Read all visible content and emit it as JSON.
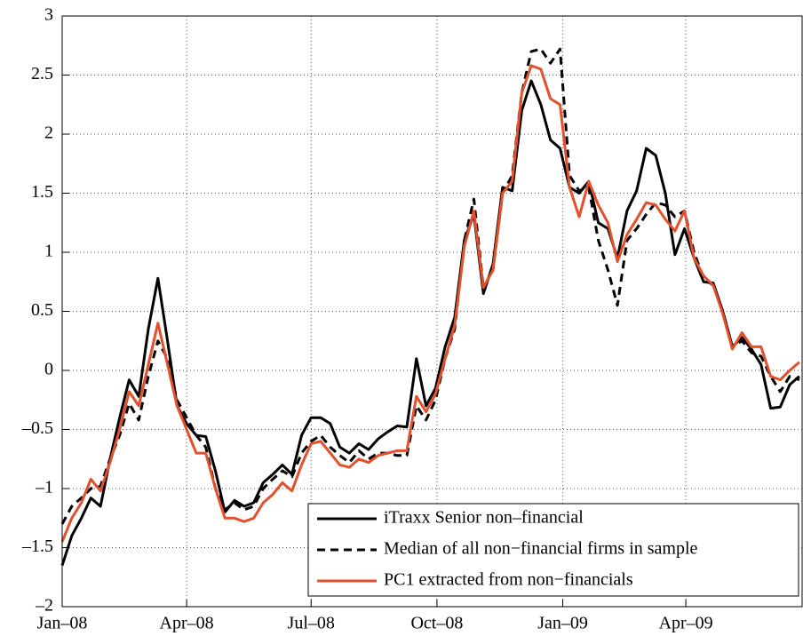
{
  "chart_data": {
    "type": "line",
    "x": [
      0,
      7,
      14,
      21,
      28,
      35,
      42,
      49,
      56,
      63,
      70,
      77,
      84,
      91,
      98,
      105,
      112,
      119,
      126,
      133,
      140,
      147,
      154,
      161,
      168,
      175,
      182,
      189,
      196,
      203,
      210,
      217,
      224,
      231,
      238,
      245,
      252,
      259,
      266,
      273,
      280,
      287,
      294,
      301,
      308,
      315,
      322,
      329,
      336,
      343,
      350,
      357,
      364,
      371,
      378,
      385,
      392,
      399,
      406,
      413,
      420,
      427,
      434,
      441,
      448,
      455,
      462,
      469,
      476,
      483,
      490,
      497,
      504,
      511,
      518,
      525,
      532,
      539
    ],
    "xlim": [
      0,
      541
    ],
    "xticks": [
      {
        "value": 0,
        "label": "Jan–08"
      },
      {
        "value": 91,
        "label": "Apr–08"
      },
      {
        "value": 182,
        "label": "Jul–08"
      },
      {
        "value": 274,
        "label": "Oct–08"
      },
      {
        "value": 366,
        "label": "Jan–09"
      },
      {
        "value": 456,
        "label": "Apr–09"
      }
    ],
    "ylim": [
      -2,
      3
    ],
    "yticks": [
      {
        "value": -2,
        "label": "–2"
      },
      {
        "value": -1.5,
        "label": "–1.5"
      },
      {
        "value": -1,
        "label": "–1"
      },
      {
        "value": -0.5,
        "label": "–0.5"
      },
      0,
      0.5,
      1,
      1.5,
      2,
      2.5,
      3
    ],
    "grid": true,
    "legend": "lower right",
    "series": [
      {
        "name": "iTraxx Senior non–financial",
        "color": "#000000",
        "dash": false,
        "values": [
          -1.65,
          -1.4,
          -1.25,
          -1.08,
          -1.15,
          -0.75,
          -0.4,
          -0.08,
          -0.22,
          0.35,
          0.78,
          0.25,
          -0.3,
          -0.45,
          -0.55,
          -0.56,
          -0.85,
          -1.2,
          -1.1,
          -1.15,
          -1.12,
          -0.95,
          -0.88,
          -0.8,
          -0.88,
          -0.55,
          -0.4,
          -0.4,
          -0.45,
          -0.65,
          -0.7,
          -0.62,
          -0.67,
          -0.58,
          -0.52,
          -0.47,
          -0.48,
          0.1,
          -0.3,
          -0.15,
          0.2,
          0.45,
          1.1,
          1.32,
          0.65,
          0.9,
          1.55,
          1.52,
          2.2,
          2.45,
          2.25,
          1.95,
          1.88,
          1.55,
          1.5,
          1.6,
          1.25,
          1.2,
          0.95,
          1.35,
          1.52,
          1.88,
          1.82,
          1.5,
          0.98,
          1.2,
          0.95,
          0.75,
          0.74,
          0.5,
          0.2,
          0.28,
          0.18,
          0.05,
          -0.32,
          -0.31,
          -0.12,
          -0.05
        ]
      },
      {
        "name": "Median of all non−financial firms in sample",
        "color": "#000000",
        "dash": true,
        "values": [
          -1.3,
          -1.15,
          -1.08,
          -1.0,
          -0.98,
          -0.75,
          -0.55,
          -0.28,
          -0.42,
          -0.05,
          0.25,
          0.1,
          -0.25,
          -0.4,
          -0.55,
          -0.65,
          -1.0,
          -1.18,
          -1.12,
          -1.18,
          -1.15,
          -1.0,
          -0.92,
          -0.85,
          -0.9,
          -0.7,
          -0.6,
          -0.55,
          -0.65,
          -0.72,
          -0.78,
          -0.68,
          -0.75,
          -0.7,
          -0.7,
          -0.72,
          -0.72,
          -0.3,
          -0.42,
          -0.25,
          0.1,
          0.35,
          1.1,
          1.45,
          0.7,
          0.85,
          1.5,
          1.65,
          2.35,
          2.7,
          2.72,
          2.6,
          2.72,
          1.65,
          1.52,
          1.55,
          1.1,
          0.85,
          0.55,
          1.1,
          1.2,
          1.32,
          1.42,
          1.4,
          1.3,
          1.35,
          1.0,
          0.78,
          0.72,
          0.5,
          0.2,
          0.25,
          0.15,
          0.12,
          -0.05,
          -0.18,
          -0.05,
          -0.08
        ]
      },
      {
        "name": "PC1 extracted from non−financials",
        "color": "#e4502b",
        "dash": false,
        "values": [
          -1.45,
          -1.25,
          -1.12,
          -0.92,
          -1.02,
          -0.78,
          -0.5,
          -0.18,
          -0.3,
          0.05,
          0.4,
          0.05,
          -0.3,
          -0.5,
          -0.7,
          -0.7,
          -1.0,
          -1.25,
          -1.25,
          -1.28,
          -1.25,
          -1.12,
          -1.05,
          -0.95,
          -1.02,
          -0.8,
          -0.62,
          -0.6,
          -0.7,
          -0.8,
          -0.82,
          -0.75,
          -0.78,
          -0.72,
          -0.7,
          -0.68,
          -0.68,
          -0.22,
          -0.35,
          -0.2,
          0.1,
          0.38,
          1.05,
          1.35,
          0.7,
          0.85,
          1.5,
          1.6,
          2.35,
          2.58,
          2.55,
          2.3,
          2.25,
          1.55,
          1.3,
          1.6,
          1.4,
          1.25,
          0.92,
          1.15,
          1.28,
          1.42,
          1.4,
          1.28,
          1.18,
          1.35,
          0.95,
          0.8,
          0.72,
          0.48,
          0.18,
          0.32,
          0.2,
          0.2,
          -0.05,
          -0.08,
          0.0,
          0.07
        ]
      }
    ]
  }
}
